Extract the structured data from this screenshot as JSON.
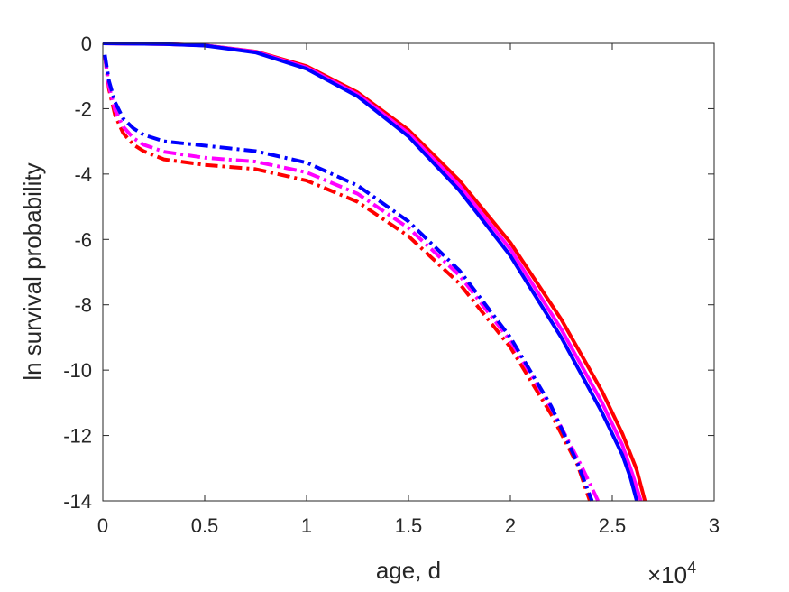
{
  "chart_data": {
    "type": "line",
    "title": "",
    "xlabel": "age, d",
    "ylabel": "ln survival probability",
    "x_exponent_label": {
      "base": "×10",
      "exponent": "4"
    },
    "xlim": [
      0,
      30000
    ],
    "ylim": [
      -14,
      0
    ],
    "x_ticks": [
      0,
      5000,
      10000,
      15000,
      20000,
      25000,
      30000
    ],
    "x_tick_labels": [
      "0",
      "0.5",
      "1",
      "1.5",
      "2",
      "2.5",
      "3"
    ],
    "y_ticks": [
      0,
      -2,
      -4,
      -6,
      -8,
      -10,
      -12,
      -14
    ],
    "y_tick_labels": [
      "0",
      "-2",
      "-4",
      "-6",
      "-8",
      "-10",
      "-12",
      "-14"
    ],
    "grid": false,
    "box": true,
    "series": [
      {
        "color": "#ff0000",
        "style": "solid",
        "x": [
          0,
          3000,
          5000,
          7500,
          10000,
          12500,
          15000,
          17500,
          20000,
          22500,
          24500,
          25500,
          26200,
          26600
        ],
        "y": [
          0,
          -0.02,
          -0.06,
          -0.25,
          -0.7,
          -1.5,
          -2.65,
          -4.2,
          -6.1,
          -8.45,
          -10.65,
          -11.95,
          -13.05,
          -14
        ]
      },
      {
        "color": "#ff00ff",
        "style": "solid",
        "x": [
          0,
          3000,
          5000,
          7500,
          10000,
          12500,
          15000,
          17500,
          20000,
          22500,
          24500,
          25500,
          26000,
          26400
        ],
        "y": [
          0,
          -0.02,
          -0.06,
          -0.26,
          -0.74,
          -1.56,
          -2.75,
          -4.35,
          -6.3,
          -8.75,
          -11.0,
          -12.3,
          -13.2,
          -14
        ]
      },
      {
        "color": "#0000ff",
        "style": "solid",
        "x": [
          0,
          3000,
          5000,
          7500,
          10000,
          12500,
          15000,
          17500,
          20000,
          22500,
          24500,
          25500,
          25900,
          26200
        ],
        "y": [
          0,
          -0.02,
          -0.07,
          -0.28,
          -0.78,
          -1.62,
          -2.85,
          -4.5,
          -6.5,
          -9.0,
          -11.3,
          -12.6,
          -13.3,
          -14
        ]
      },
      {
        "color": "#ff0000",
        "style": "dashdot",
        "x": [
          100,
          300,
          600,
          1000,
          1500,
          2000,
          3000,
          5000,
          7500,
          10000,
          12500,
          15000,
          17500,
          20000,
          22000,
          23300,
          23900
        ],
        "y": [
          -0.4,
          -1.4,
          -2.2,
          -2.75,
          -3.1,
          -3.3,
          -3.55,
          -3.72,
          -3.85,
          -4.2,
          -4.85,
          -5.9,
          -7.35,
          -9.3,
          -11.35,
          -12.9,
          -14
        ]
      },
      {
        "color": "#ff00ff",
        "style": "dashdot",
        "x": [
          100,
          300,
          600,
          1000,
          1500,
          2000,
          3000,
          5000,
          7500,
          10000,
          12500,
          15000,
          17500,
          20000,
          22000,
          23500,
          24300
        ],
        "y": [
          -0.4,
          -1.3,
          -2.05,
          -2.55,
          -2.9,
          -3.1,
          -3.32,
          -3.5,
          -3.62,
          -3.95,
          -4.6,
          -5.65,
          -7.1,
          -9.1,
          -11.15,
          -12.95,
          -14
        ]
      },
      {
        "color": "#0000ff",
        "style": "dashdot",
        "x": [
          100,
          300,
          600,
          1000,
          1500,
          2000,
          3000,
          5000,
          7500,
          10000,
          12500,
          15000,
          17500,
          20000,
          22000,
          23300,
          24000
        ],
        "y": [
          -0.35,
          -1.15,
          -1.8,
          -2.3,
          -2.6,
          -2.8,
          -3.0,
          -3.13,
          -3.3,
          -3.65,
          -4.35,
          -5.45,
          -6.95,
          -9.0,
          -11.1,
          -12.85,
          -14
        ]
      }
    ]
  }
}
